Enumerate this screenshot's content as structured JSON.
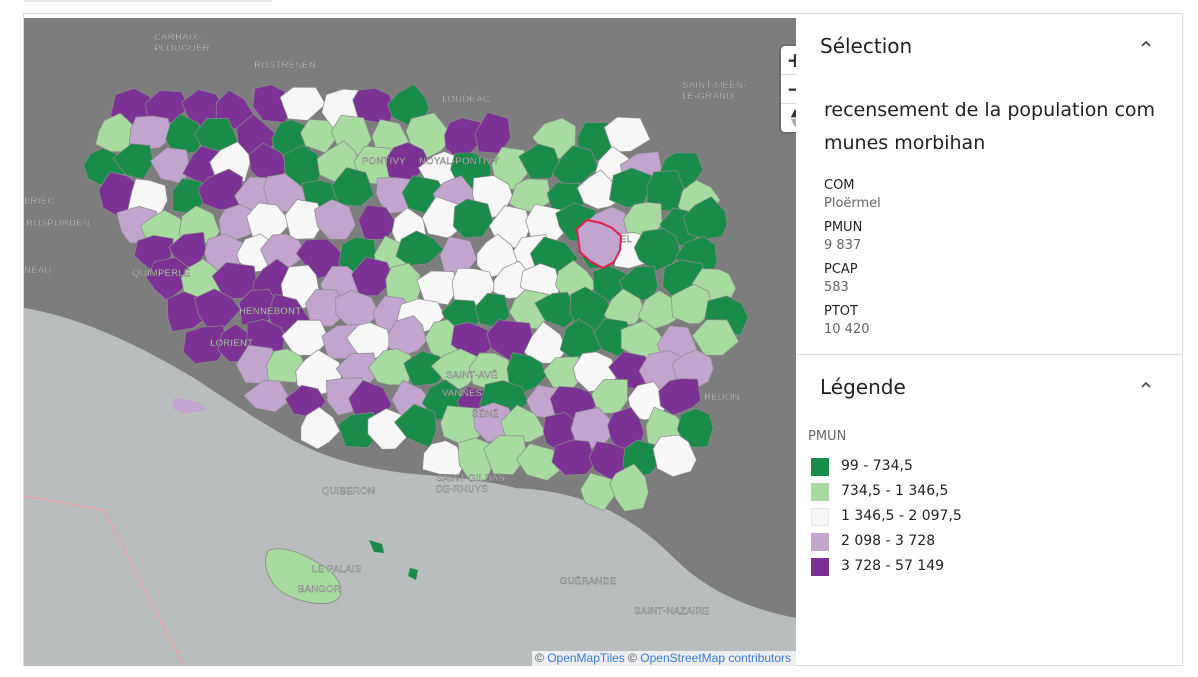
{
  "map": {
    "zoom_in_label": "+",
    "zoom_out_label": "−",
    "compass_north": "▲",
    "compass_south": "▼",
    "attribution": {
      "prefix": "© ",
      "openmaptiles": "OpenMapTiles",
      "middle": " © ",
      "osm": "OpenStreetMap contributors"
    },
    "place_labels": [
      "CARHAIX-\nPLOUGUER",
      "ROSTRENEN",
      "LOUDÉAC",
      "SAINT-MÉEN-\nLE-GRAND",
      "PONTIVY",
      "NOYAL-PONTIVY",
      "BRIEC",
      "ROSPORDEN",
      "QUIMPERLÉ",
      "HENNEBONT",
      "LORIENT",
      "SAINT-AVÉ",
      "VANNES",
      "SÉNÉ",
      "SAINT-GILDAS-\nDE-RHUYS",
      "QUIBERON",
      "LE PALAIS",
      "BANGOR",
      "GUÉRANDE",
      "SAINT-NAZAIRE",
      "REDON",
      "PLOËRMEL",
      "NEAU"
    ],
    "colors": {
      "land": "#7f7f7f",
      "sea": "#b9bdbe",
      "selected_outline": "#e0204a"
    }
  },
  "selection": {
    "title": "Sélection",
    "layer_name": "recensement de la population communes morbihan",
    "properties": [
      {
        "key": "COM",
        "value": "Ploërmel"
      },
      {
        "key": "PMUN",
        "value": "9 837"
      },
      {
        "key": "PCAP",
        "value": "583"
      },
      {
        "key": "PTOT",
        "value": "10 420"
      }
    ]
  },
  "legend": {
    "title": "Légende",
    "field": "PMUN",
    "classes": [
      {
        "label": "99 - 734,5",
        "color": "#1a8c4a"
      },
      {
        "label": "734,5 - 1 346,5",
        "color": "#a7dba0"
      },
      {
        "label": "1 346,5 - 2 097,5",
        "color": "#f7f7f7"
      },
      {
        "label": "2 098 - 3 728",
        "color": "#c2a5cf"
      },
      {
        "label": "3 728 - 57 149",
        "color": "#7b3294"
      }
    ]
  }
}
